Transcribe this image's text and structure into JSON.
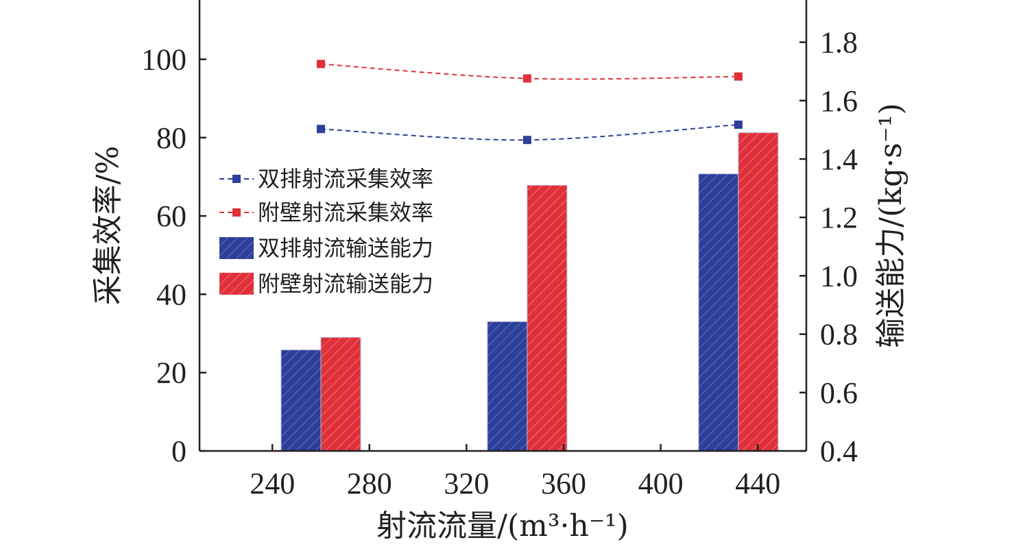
{
  "chart_data": {
    "type": "bar",
    "x": [
      260,
      345,
      432
    ],
    "xlabel": "射流流量/(m³·h⁻¹)",
    "xticks": [
      "240",
      "280",
      "320",
      "360",
      "400",
      "440"
    ],
    "xtick_values": [
      240,
      280,
      320,
      360,
      400,
      440
    ],
    "xlim": [
      210,
      460
    ],
    "ylabel_left": "采集效率/%",
    "ylim_left": [
      0,
      100
    ],
    "yticks_left": [
      "0",
      "20",
      "40",
      "60",
      "80",
      "100"
    ],
    "ylabel_right": "输送能力/(kg·s⁻¹)",
    "ylim_right": [
      0.4,
      1.8
    ],
    "yticks_right": [
      "0.4",
      "0.6",
      "0.8",
      "1.0",
      "1.2",
      "1.4",
      "1.6",
      "1.8"
    ],
    "series": [
      {
        "name": "双排射流采集效率",
        "kind": "line",
        "axis": "left",
        "color": "#2d3e9b",
        "values": [
          82.2,
          79.4,
          83.3
        ]
      },
      {
        "name": "附壁射流采集效率",
        "kind": "line",
        "axis": "left",
        "color": "#e0303a",
        "values": [
          98.8,
          95.1,
          95.6
        ]
      },
      {
        "name": "双排射流输送能力",
        "kind": "bar",
        "axis": "right",
        "color": "#2d3e9b",
        "values": [
          0.746,
          0.843,
          1.349
        ]
      },
      {
        "name": "附壁射流输送能力",
        "kind": "bar",
        "axis": "right",
        "color": "#e0303a",
        "values": [
          0.789,
          1.31,
          1.49
        ]
      }
    ],
    "legend_position": "center-left",
    "grid": false
  }
}
